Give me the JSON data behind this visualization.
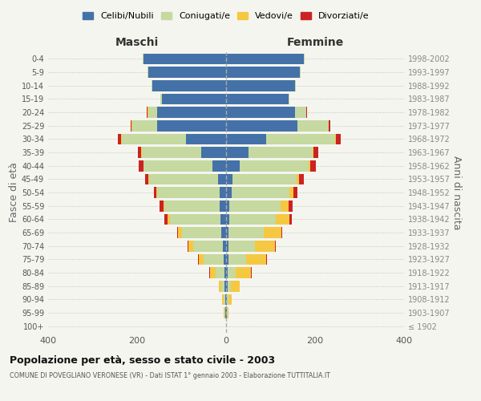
{
  "age_groups": [
    "100+",
    "95-99",
    "90-94",
    "85-89",
    "80-84",
    "75-79",
    "70-74",
    "65-69",
    "60-64",
    "55-59",
    "50-54",
    "45-49",
    "40-44",
    "35-39",
    "30-34",
    "25-29",
    "20-24",
    "15-19",
    "10-14",
    "5-9",
    "0-4"
  ],
  "birth_years": [
    "≤ 1902",
    "1903-1907",
    "1908-1912",
    "1913-1917",
    "1918-1922",
    "1923-1927",
    "1928-1932",
    "1933-1937",
    "1938-1942",
    "1943-1947",
    "1948-1952",
    "1953-1957",
    "1958-1962",
    "1963-1967",
    "1968-1972",
    "1973-1977",
    "1978-1982",
    "1983-1987",
    "1988-1992",
    "1993-1997",
    "1998-2002"
  ],
  "maschi": {
    "celibi": [
      0,
      1,
      2,
      3,
      4,
      5,
      8,
      10,
      12,
      14,
      15,
      18,
      30,
      55,
      90,
      155,
      155,
      145,
      165,
      175,
      185
    ],
    "coniugati": [
      0,
      2,
      4,
      8,
      20,
      45,
      65,
      90,
      115,
      125,
      140,
      155,
      155,
      135,
      145,
      55,
      20,
      2,
      2,
      2,
      2
    ],
    "vedovi": [
      0,
      2,
      3,
      6,
      12,
      12,
      12,
      8,
      4,
      2,
      2,
      1,
      1,
      1,
      1,
      2,
      2,
      0,
      0,
      0,
      0
    ],
    "divorziati": [
      0,
      0,
      0,
      0,
      1,
      1,
      2,
      2,
      8,
      8,
      6,
      8,
      10,
      8,
      8,
      3,
      2,
      0,
      0,
      0,
      0
    ]
  },
  "femmine": {
    "nubili": [
      0,
      1,
      2,
      3,
      3,
      5,
      5,
      5,
      7,
      8,
      12,
      14,
      30,
      50,
      90,
      160,
      155,
      140,
      155,
      165,
      175
    ],
    "coniugate": [
      0,
      2,
      3,
      8,
      18,
      40,
      60,
      80,
      105,
      115,
      130,
      145,
      155,
      145,
      155,
      70,
      25,
      2,
      2,
      2,
      2
    ],
    "vedove": [
      0,
      3,
      8,
      20,
      35,
      45,
      45,
      40,
      30,
      18,
      10,
      5,
      4,
      2,
      1,
      1,
      0,
      0,
      0,
      0,
      0
    ],
    "divorziate": [
      0,
      0,
      0,
      0,
      1,
      1,
      1,
      2,
      6,
      8,
      8,
      10,
      12,
      10,
      12,
      3,
      2,
      0,
      0,
      0,
      0
    ]
  },
  "colors": {
    "celibi": "#4472a8",
    "coniugati": "#c5d9a0",
    "vedovi": "#f5c842",
    "divorziati": "#cc2222"
  },
  "xlim": 400,
  "title": "Popolazione per età, sesso e stato civile - 2003",
  "subtitle": "COMUNE DI POVEGLIANO VERONESE (VR) - Dati ISTAT 1° gennaio 2003 - Elaborazione TUTTITALIA.IT",
  "ylabel_left": "Fasce di età",
  "ylabel_right": "Anni di nascita",
  "legend_labels": [
    "Celibi/Nubili",
    "Coniugati/e",
    "Vedovi/e",
    "Divorziati/e"
  ],
  "background_color": "#f5f5f0"
}
